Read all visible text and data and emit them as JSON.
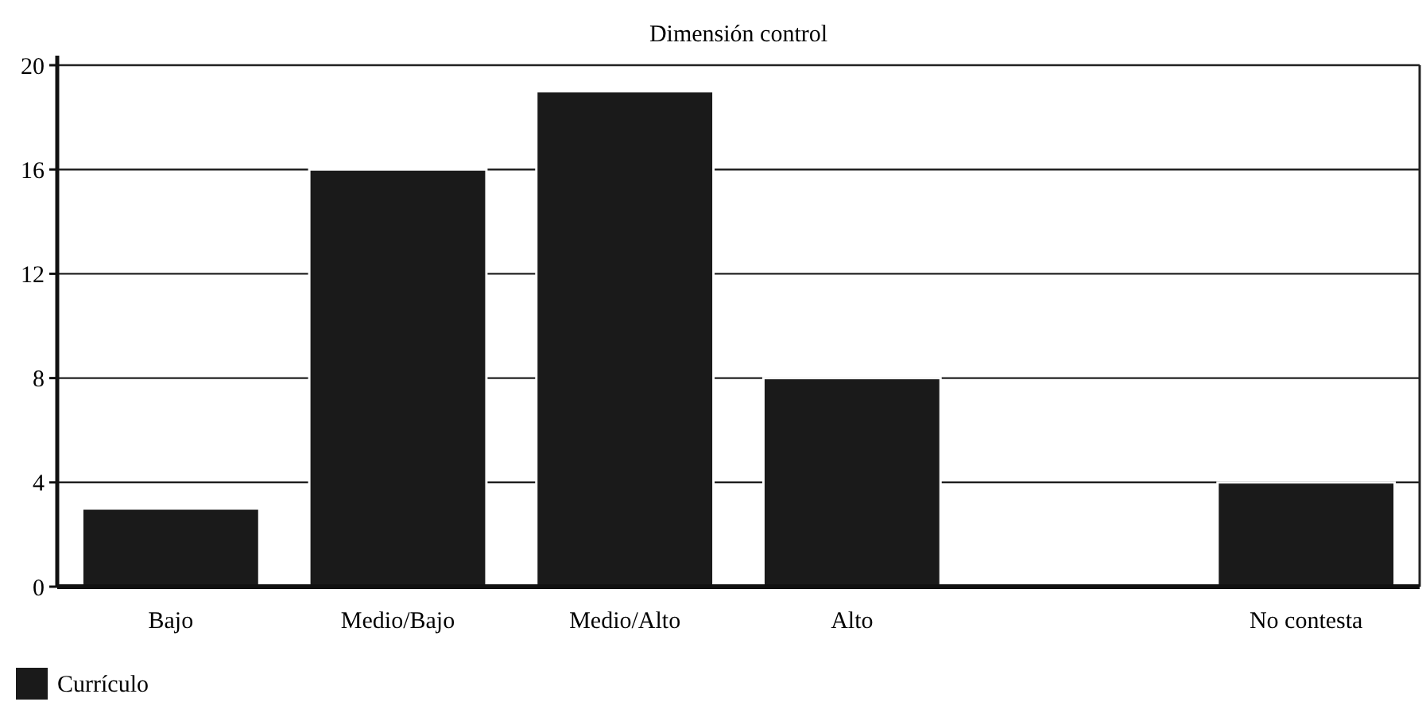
{
  "chart_data": {
    "type": "bar",
    "title": "Dimensión control",
    "categories": [
      "Bajo",
      "Medio/Bajo",
      "Medio/Alto",
      "Alto",
      null,
      "No contesta"
    ],
    "series": [
      {
        "name": "Currículo",
        "color": "#1a1a1a",
        "values": [
          3,
          16,
          19,
          8,
          null,
          4
        ]
      }
    ],
    "ylim": [
      0,
      20
    ],
    "yticks": [
      0,
      4,
      8,
      12,
      16,
      20
    ],
    "grid": "y",
    "legend": "bottom left"
  }
}
